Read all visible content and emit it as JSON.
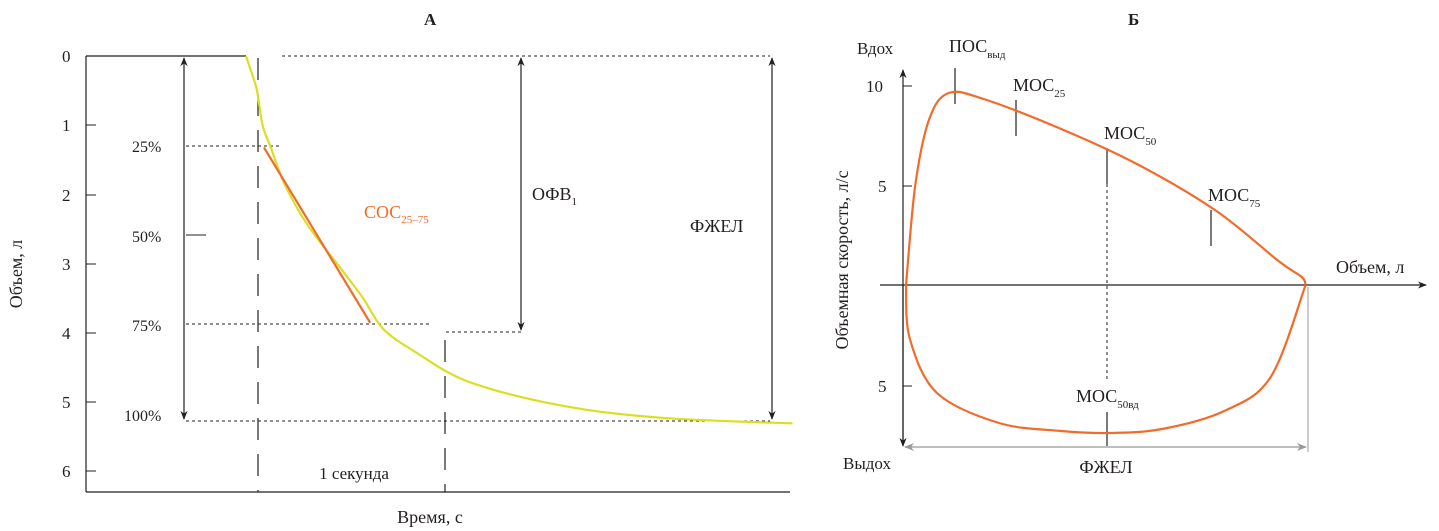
{
  "colors": {
    "curve_yellow": "#d9e021",
    "curve_orange": "#f26b2a",
    "axis": "#231f20",
    "guide_gray": "#999999"
  },
  "chart_data": [
    {
      "type": "line",
      "panel_label": "А",
      "xlabel": "Время, с",
      "ylabel": "Объем, л",
      "ylim": [
        0,
        6
      ],
      "y_inverted": true,
      "y_ticks": [
        "0",
        "1",
        "2",
        "3",
        "4",
        "5",
        "6"
      ],
      "percent_labels": [
        "25%",
        "50%",
        "75%",
        "100%"
      ],
      "series": [
        {
          "color": "#d9e021",
          "x": [
            0.0,
            0.02,
            0.05,
            0.08,
            0.12,
            0.18,
            0.28,
            0.45,
            0.7,
            0.85,
            1.0,
            1.25,
            1.55,
            1.95,
            2.45,
            3.0,
            3.5,
            3.96
          ],
          "y": [
            0.0,
            0.12,
            0.3,
            0.5,
            1.0,
            1.32,
            1.85,
            2.45,
            3.1,
            3.5,
            3.95,
            4.3,
            4.65,
            4.9,
            5.1,
            5.22,
            5.27,
            5.3
          ]
        }
      ],
      "segment": {
        "label": "СОС",
        "label_sub": "25–75",
        "x": [
          0.13,
          0.9
        ],
        "y": [
          1.32,
          3.85
        ]
      },
      "annotations": {
        "fev1_label": "ОФВ",
        "fev1_sub": "1",
        "fvc_label": "ФЖЕЛ",
        "one_second_label": "1 секунда"
      }
    },
    {
      "type": "line",
      "panel_label": "Б",
      "xlabel": "Объем, л",
      "ylabel": "Объемная скорость, л/с",
      "y_top_label": "Вдох",
      "y_bottom_label": "Выдох",
      "y_ticks": [
        "10",
        "5",
        "5"
      ],
      "labels": {
        "pef": {
          "main": "ПОС",
          "sub": "выд"
        },
        "mef25": {
          "main": "МОС",
          "sub": "25"
        },
        "mef50": {
          "main": "МОС",
          "sub": "50"
        },
        "mef75": {
          "main": "МОС",
          "sub": "75"
        },
        "mif50": {
          "main": "МОС",
          "sub": "50вд"
        },
        "fvc": "ФЖЕЛ"
      },
      "series": [
        {
          "color": "#f26b2a",
          "volume": [
            0.0,
            0.12,
            0.3,
            0.55,
            1.0,
            2.0,
            3.0,
            4.0,
            4.8,
            5.1,
            5.15
          ],
          "flow": [
            0.0,
            5.0,
            8.3,
            9.6,
            9.3,
            7.8,
            6.0,
            3.7,
            1.2,
            0.4,
            0.0
          ]
        },
        {
          "color": "#f26b2a",
          "volume": [
            0.0,
            0.05,
            0.4,
            1.2,
            2.0,
            2.6,
            3.3,
            4.1,
            4.7,
            5.15
          ],
          "flow": [
            0.0,
            -2.7,
            -5.4,
            -6.9,
            -7.3,
            -7.4,
            -7.2,
            -6.3,
            -4.6,
            0.0
          ]
        }
      ]
    }
  ]
}
